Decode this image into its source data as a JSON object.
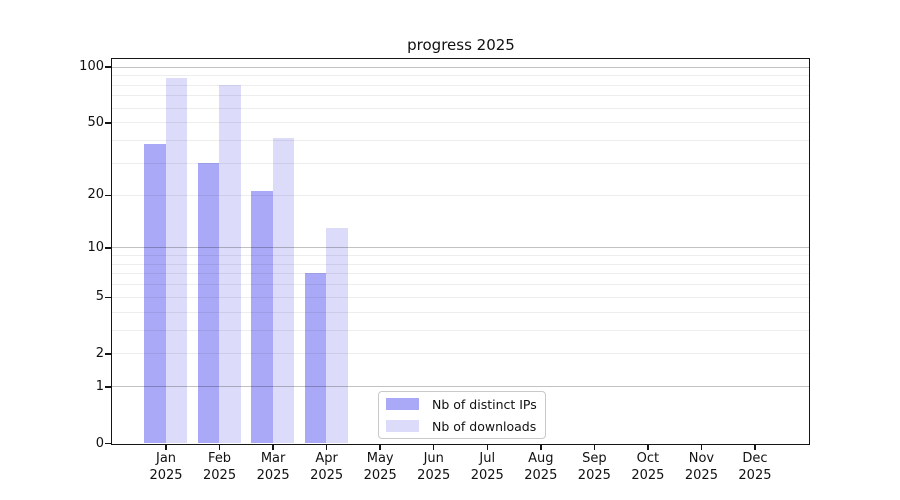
{
  "chart_data": {
    "type": "bar",
    "title": "progress 2025",
    "categories": [
      "Jan",
      "Feb",
      "Mar",
      "Apr",
      "May",
      "Jun",
      "Jul",
      "Aug",
      "Sep",
      "Oct",
      "Nov",
      "Dec"
    ],
    "year_label": "2025",
    "series": [
      {
        "name": "Nb of distinct IPs",
        "color": "#a9a9f8",
        "values": [
          38,
          30,
          21,
          7,
          0,
          0,
          0,
          0,
          0,
          0,
          0,
          0
        ]
      },
      {
        "name": "Nb of downloads",
        "color": "#dcdcfa",
        "values": [
          87,
          80,
          41,
          13,
          0,
          0,
          0,
          0,
          0,
          0,
          0,
          0
        ]
      }
    ],
    "xlabel": "",
    "ylabel": "",
    "yscale": "log1p",
    "ylim": [
      0,
      110
    ],
    "ytick_labels": [
      "0",
      "1",
      "2",
      "5",
      "10",
      "20",
      "50",
      "100"
    ],
    "ytick_values": [
      0,
      1,
      2,
      5,
      10,
      20,
      50,
      100
    ],
    "grid_major_values": [
      1,
      10,
      100
    ],
    "grid_minor_values": [
      2,
      3,
      4,
      5,
      6,
      7,
      8,
      9,
      20,
      30,
      40,
      50,
      60,
      70,
      80,
      90
    ],
    "grid": "horizontal",
    "legend_position": "inside-bottom-center",
    "colors": {
      "axis": "#151515",
      "grid_major": "#c2c2c2",
      "grid_minor": "#ededed",
      "background": "#ffffff",
      "text": "#111111"
    }
  }
}
